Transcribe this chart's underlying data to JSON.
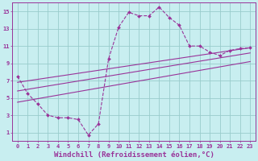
{
  "title": "",
  "xlabel": "Windchill (Refroidissement éolien,°C)",
  "ylabel": "",
  "background_color": "#c8eef0",
  "grid_color": "#99cccc",
  "line_color": "#993399",
  "xlim": [
    -0.5,
    23.5
  ],
  "ylim": [
    0,
    16
  ],
  "xticks": [
    0,
    1,
    2,
    3,
    4,
    5,
    6,
    7,
    8,
    9,
    10,
    11,
    12,
    13,
    14,
    15,
    16,
    17,
    18,
    19,
    20,
    21,
    22,
    23
  ],
  "yticks": [
    1,
    3,
    5,
    7,
    9,
    11,
    13,
    15
  ],
  "main_x": [
    0,
    1,
    2,
    3,
    4,
    5,
    6,
    7,
    8,
    9,
    10,
    11,
    12,
    13,
    14,
    15,
    16,
    17,
    18,
    19,
    20,
    21,
    22,
    23
  ],
  "main_y": [
    7.5,
    5.5,
    4.3,
    3.0,
    2.7,
    2.7,
    2.5,
    0.7,
    2.0,
    9.5,
    13.2,
    14.9,
    14.5,
    14.5,
    15.5,
    14.3,
    13.4,
    11.0,
    11.0,
    10.3,
    9.9,
    10.5,
    10.7,
    10.8
  ],
  "trend1_x": [
    0,
    23
  ],
  "trend1_y": [
    6.8,
    10.8
  ],
  "trend2_x": [
    0,
    23
  ],
  "trend2_y": [
    5.8,
    10.2
  ],
  "trend3_x": [
    0,
    23
  ],
  "trend3_y": [
    4.5,
    9.2
  ],
  "font_color": "#993399",
  "tick_fontsize": 5.0,
  "xlabel_fontsize": 6.5
}
